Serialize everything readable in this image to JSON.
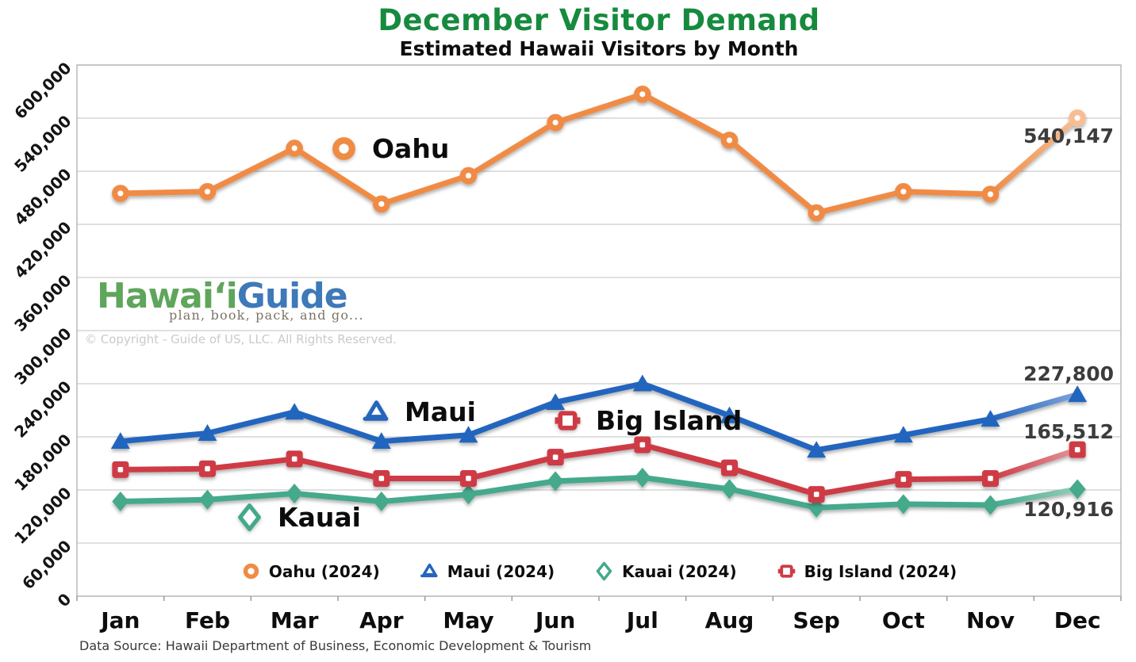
{
  "title": "December Visitor Demand",
  "subtitle": "Estimated Hawaii Visitors by Month",
  "title_color": "#178A3E",
  "watermark": {
    "logo_hawaii": "Hawaiʻi",
    "logo_guide": "Guide",
    "logo_hawaii_color": "#5FA55C",
    "logo_guide_color": "#3E79B8",
    "tagline": "plan, book, pack, and go...",
    "copyright": "© Copyright - Guide of US, LLC. All Rights Reserved."
  },
  "footer": "Data Source: Hawaii Department of Business, Economic Development & Tourism",
  "inline_labels": [
    {
      "series_id": "oahu",
      "text": "Oahu"
    },
    {
      "series_id": "maui",
      "text": "Maui"
    },
    {
      "series_id": "big-island",
      "text": "Big Island"
    },
    {
      "series_id": "kauai",
      "text": "Kauai"
    }
  ],
  "chart_data": {
    "type": "line",
    "title": "December Visitor Demand",
    "subtitle": "Estimated Hawaii Visitors by Month",
    "categories": [
      "Jan",
      "Feb",
      "Mar",
      "Apr",
      "May",
      "Jun",
      "Jul",
      "Aug",
      "Sep",
      "Oct",
      "Nov",
      "Dec"
    ],
    "ylim": [
      0,
      600000
    ],
    "grid": "horizontal",
    "legend_position": "bottom",
    "yticks": [
      {
        "value": 0,
        "label": "0"
      },
      {
        "value": 60000,
        "label": "60,000"
      },
      {
        "value": 120000,
        "label": "120,000"
      },
      {
        "value": 180000,
        "label": "180,000"
      },
      {
        "value": 240000,
        "label": "240,000"
      },
      {
        "value": 300000,
        "label": "300,000"
      },
      {
        "value": 360000,
        "label": "360,000"
      },
      {
        "value": 420000,
        "label": "420,000"
      },
      {
        "value": 480000,
        "label": "480,000"
      },
      {
        "value": 540000,
        "label": "540,000"
      },
      {
        "value": 600000,
        "label": "600,000"
      }
    ],
    "series": [
      {
        "id": "oahu",
        "island": "Oahu",
        "legend_label": "Oahu (2024)",
        "marker": "ring",
        "color": "#F08B45",
        "light_color": "#F7BE93",
        "last_marker_light": true,
        "end_label": "540,147",
        "values": [
          455000,
          457000,
          506000,
          443000,
          475000,
          535000,
          567000,
          515000,
          433000,
          457000,
          454000,
          540147
        ]
      },
      {
        "id": "maui",
        "island": "Maui",
        "legend_label": "Maui (2024)",
        "marker": "triangle",
        "color": "#2465BE",
        "light_color": "#7DA4DA",
        "last_marker_light": false,
        "end_label": "227,800",
        "values": [
          175000,
          184000,
          208000,
          175000,
          182000,
          219000,
          240000,
          204000,
          165000,
          182000,
          200000,
          227800
        ]
      },
      {
        "id": "kauai",
        "island": "Kauai",
        "legend_label": "Kauai (2024)",
        "marker": "diamond",
        "color": "#44A98C",
        "light_color": "#93CDB8",
        "last_marker_light": false,
        "end_label": "120,916",
        "values": [
          107000,
          109000,
          116000,
          107000,
          115000,
          130000,
          134000,
          121000,
          100000,
          104000,
          103000,
          120916
        ]
      },
      {
        "id": "big-island",
        "island": "Big Island",
        "legend_label": "Big Island (2024)",
        "marker": "square",
        "color": "#CE3B45",
        "light_color": "#E0959B",
        "last_marker_light": false,
        "end_label": "165,512",
        "values": [
          143000,
          144000,
          155000,
          133000,
          133000,
          157000,
          171000,
          145000,
          115000,
          132000,
          133000,
          165512
        ]
      }
    ]
  }
}
